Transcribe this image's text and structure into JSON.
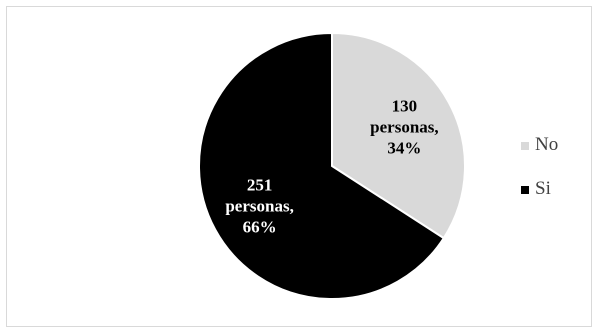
{
  "chart_data": {
    "type": "pie",
    "title": "",
    "slices": [
      {
        "label": "No",
        "value": 130,
        "percent": 34,
        "color": "#d9d9d9",
        "text_color": "#000000",
        "data_label": [
          "130",
          "personas,",
          "34%"
        ]
      },
      {
        "label": "Si",
        "value": 251,
        "percent": 66,
        "color": "#000000",
        "text_color": "#ffffff",
        "data_label": [
          "251",
          "personas,",
          "66%"
        ]
      }
    ],
    "legend": {
      "position": "right",
      "entries": [
        "No",
        "Si"
      ]
    }
  }
}
